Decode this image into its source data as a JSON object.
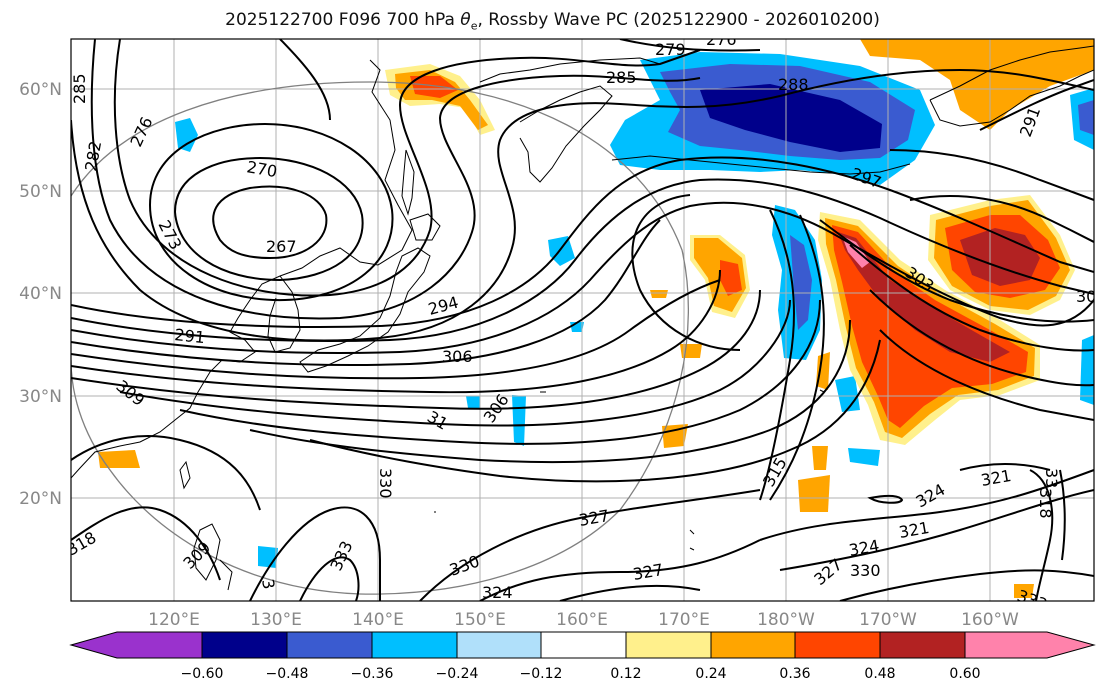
{
  "title": {
    "prefix": "2025122700 F096 700 hPa ",
    "symbol": "θ",
    "subscript": "e",
    "suffix": ", Rossby Wave PC (2025122900 - 2026010200)"
  },
  "map": {
    "lon_labels": [
      "120°E",
      "130°E",
      "140°E",
      "150°E",
      "160°E",
      "170°E",
      "180°W",
      "170°W",
      "160°W"
    ],
    "lat_labels": [
      "60°N",
      "50°N",
      "40°N",
      "30°N",
      "20°N"
    ],
    "contour_labels": [
      "279",
      "276",
      "285",
      "288",
      "285",
      "276",
      "282",
      "270",
      "273",
      "267",
      "297",
      "291",
      "303",
      "30",
      "294",
      "291",
      "306",
      "309",
      "31",
      "306",
      "315",
      "321",
      "324",
      "33",
      "318",
      "327",
      "330",
      "333",
      "330",
      "327",
      "324",
      "330",
      "333",
      "324",
      "321",
      "327",
      "318",
      "3",
      "309"
    ]
  },
  "colorbar": {
    "tick_labels": [
      "−0.60",
      "−0.48",
      "−0.36",
      "−0.24",
      "−0.12",
      "0.12",
      "0.24",
      "0.36",
      "0.48",
      "0.60"
    ],
    "colors": [
      "#9a32cd",
      "#00008b",
      "#3a5bd0",
      "#00bfff",
      "#b0e0fa",
      "#ffffff",
      "#fff08c",
      "#ffa500",
      "#ff4500",
      "#b22222",
      "#ff82ab"
    ]
  },
  "field_colors": {
    "deep_blue": "#00008b",
    "mid_blue": "#3a5bd0",
    "light_blue": "#00bfff",
    "pale_blue": "#b0e0fa",
    "yellow": "#fff08c",
    "orange": "#ffa500",
    "red_orange": "#ff4500",
    "dark_red": "#b22222",
    "pink": "#ff82ab"
  }
}
